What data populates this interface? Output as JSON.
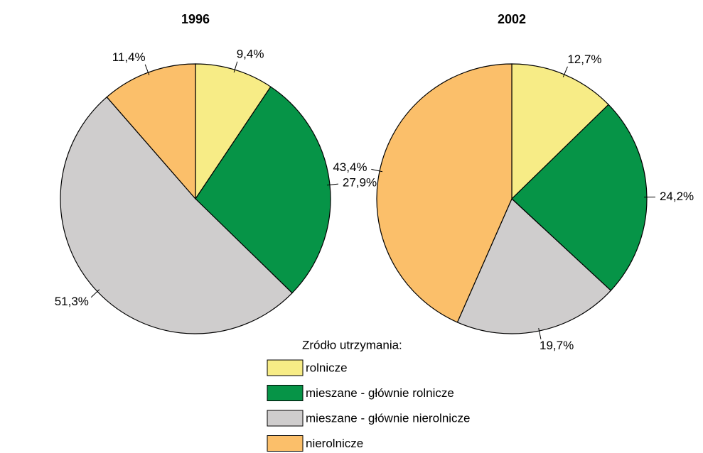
{
  "chart_data": [
    {
      "type": "pie",
      "title": "1996",
      "categories": [
        "rolnicze",
        "mieszane - głównie rolnicze",
        "mieszane - głównie nierolnicze",
        "nierolnicze"
      ],
      "values": [
        9.4,
        27.9,
        51.3,
        11.4
      ],
      "value_labels": [
        "9,4%",
        "27,9%",
        "51,3%",
        "11,4%"
      ],
      "colors": [
        "#f7ec86",
        "#069447",
        "#cfcdcd",
        "#fbbf6a"
      ]
    },
    {
      "type": "pie",
      "title": "2002",
      "categories": [
        "rolnicze",
        "mieszane - głównie rolnicze",
        "mieszane - głównie nierolnicze",
        "nierolnicze"
      ],
      "values": [
        12.7,
        24.2,
        19.7,
        43.4
      ],
      "value_labels": [
        "12,7%",
        "24,2%",
        "19,7%",
        "43,4%"
      ],
      "colors": [
        "#f7ec86",
        "#069447",
        "#cfcdcd",
        "#fbbf6a"
      ]
    }
  ],
  "legend_title": "Zródło utrzymania:"
}
